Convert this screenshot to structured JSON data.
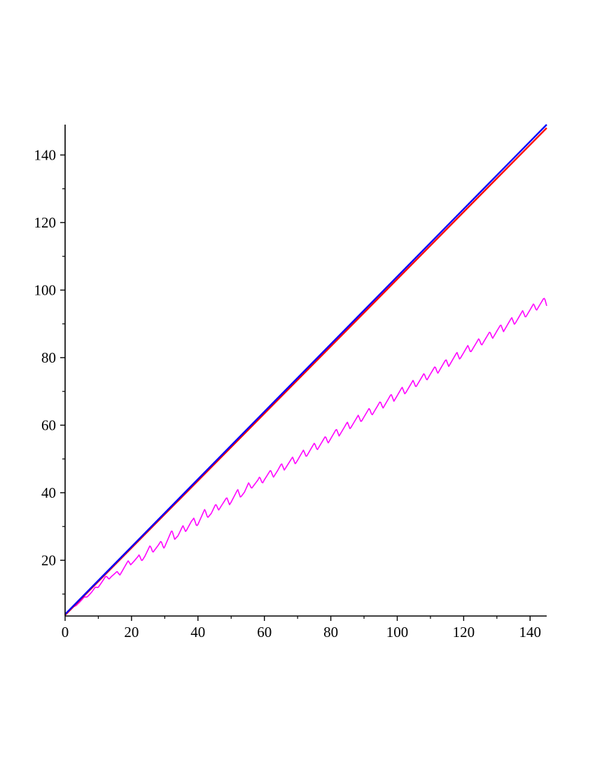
{
  "chart_data": {
    "type": "line",
    "title": "",
    "xlabel": "",
    "ylabel": "",
    "xlim": [
      0,
      145
    ],
    "ylim": [
      3.5,
      149
    ],
    "grid": false,
    "legend": "none",
    "x_ticks": [
      {
        "value": 0,
        "label": "0"
      },
      {
        "value": 20,
        "label": "20"
      },
      {
        "value": 40,
        "label": "40"
      },
      {
        "value": 60,
        "label": "60"
      },
      {
        "value": 80,
        "label": "80"
      },
      {
        "value": 100,
        "label": "100"
      },
      {
        "value": 120,
        "label": "120"
      },
      {
        "value": 140,
        "label": "140"
      }
    ],
    "y_ticks": [
      {
        "value": 20,
        "label": "20"
      },
      {
        "value": 40,
        "label": "40"
      },
      {
        "value": 60,
        "label": "60"
      },
      {
        "value": 80,
        "label": "80"
      },
      {
        "value": 100,
        "label": "100"
      },
      {
        "value": 120,
        "label": "120"
      },
      {
        "value": 140,
        "label": "140"
      }
    ],
    "series": [
      {
        "color": "#0000ff",
        "points": [
          [
            0,
            4
          ],
          [
            145,
            149
          ]
        ]
      },
      {
        "color": "#ff0000",
        "points": [
          [
            0,
            3.8
          ],
          [
            145,
            148
          ]
        ]
      },
      {
        "color": "#ff00ff",
        "points": [
          [
            0,
            3.8
          ],
          [
            3,
            6.5
          ],
          [
            6,
            9
          ],
          [
            8,
            10.5
          ],
          [
            10,
            12.5
          ],
          [
            12,
            14.5
          ],
          [
            14,
            15.5
          ],
          [
            16,
            16
          ],
          [
            18,
            18
          ],
          [
            20,
            19.8
          ],
          [
            22,
            20.3
          ],
          [
            24,
            21.5
          ],
          [
            26,
            23.5
          ],
          [
            28,
            24
          ],
          [
            30,
            25
          ],
          [
            32,
            27.5
          ],
          [
            34,
            27.5
          ],
          [
            36,
            29.5
          ],
          [
            38,
            31
          ],
          [
            40,
            31.5
          ],
          [
            42,
            33.8
          ],
          [
            44,
            34
          ],
          [
            46,
            36
          ],
          [
            48,
            37
          ],
          [
            50,
            38
          ],
          [
            52,
            39.7
          ],
          [
            54,
            40.2
          ],
          [
            56,
            42.5
          ],
          [
            58,
            43
          ],
          [
            60,
            44.5
          ],
          [
            62,
            45.5
          ],
          [
            64,
            46.5
          ],
          [
            66,
            48
          ],
          [
            68,
            49
          ],
          [
            70,
            50.2
          ],
          [
            72,
            51.5
          ],
          [
            74,
            52.8
          ],
          [
            76,
            54
          ],
          [
            78,
            55.2
          ],
          [
            80,
            56.5
          ],
          [
            82,
            57.8
          ],
          [
            84,
            59
          ],
          [
            86,
            60.3
          ],
          [
            88,
            61.5
          ],
          [
            90,
            62.8
          ],
          [
            92,
            64
          ],
          [
            94,
            65.2
          ],
          [
            96,
            66.5
          ],
          [
            98,
            67.8
          ],
          [
            100,
            69
          ],
          [
            102,
            70.3
          ],
          [
            104,
            71.5
          ],
          [
            106,
            72.8
          ],
          [
            108,
            74
          ],
          [
            110,
            75.3
          ],
          [
            112,
            76.5
          ],
          [
            114,
            77.8
          ],
          [
            116,
            79
          ],
          [
            118,
            80.3
          ],
          [
            120,
            81.5
          ],
          [
            122,
            82.8
          ],
          [
            124,
            84
          ],
          [
            126,
            85.3
          ],
          [
            128,
            86.5
          ],
          [
            130,
            87.8
          ],
          [
            132,
            89
          ],
          [
            134,
            90.3
          ],
          [
            136,
            91.5
          ],
          [
            138,
            92.8
          ],
          [
            140,
            94
          ],
          [
            142,
            95.3
          ],
          [
            144,
            96.5
          ],
          [
            145,
            96
          ]
        ],
        "oscillation": {
          "period": 3.3,
          "amplitude": 1.3
        }
      }
    ]
  }
}
